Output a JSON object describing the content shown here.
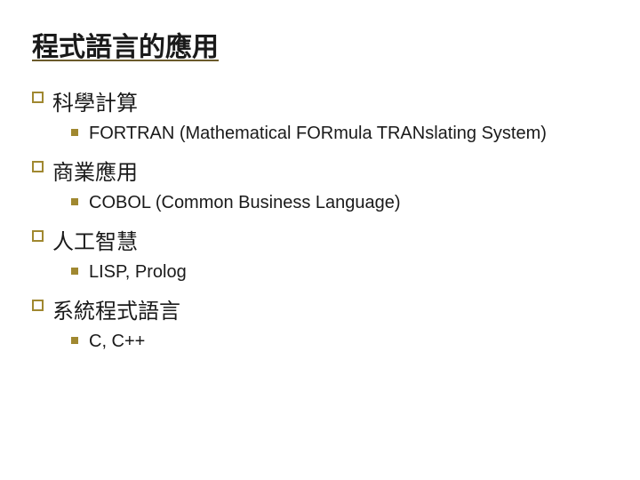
{
  "title": "程式語言的應用",
  "sections": [
    {
      "heading": "科學計算",
      "sub": "FORTRAN (Mathematical FORmula TRANslating System)"
    },
    {
      "heading": "商業應用",
      "sub": "COBOL (Common Business Language)"
    },
    {
      "heading": "人工智慧",
      "sub": "LISP, Prolog"
    },
    {
      "heading": "系統程式語言",
      "sub": "C, C++"
    }
  ],
  "colors": {
    "bullet_outline": "#a08830",
    "bullet_fill": "#a08830",
    "text": "#1a1a1a",
    "underline": "#6b5a2a",
    "background": "#ffffff"
  },
  "fontsize": {
    "title": 30,
    "level1": 24,
    "level2": 20
  }
}
